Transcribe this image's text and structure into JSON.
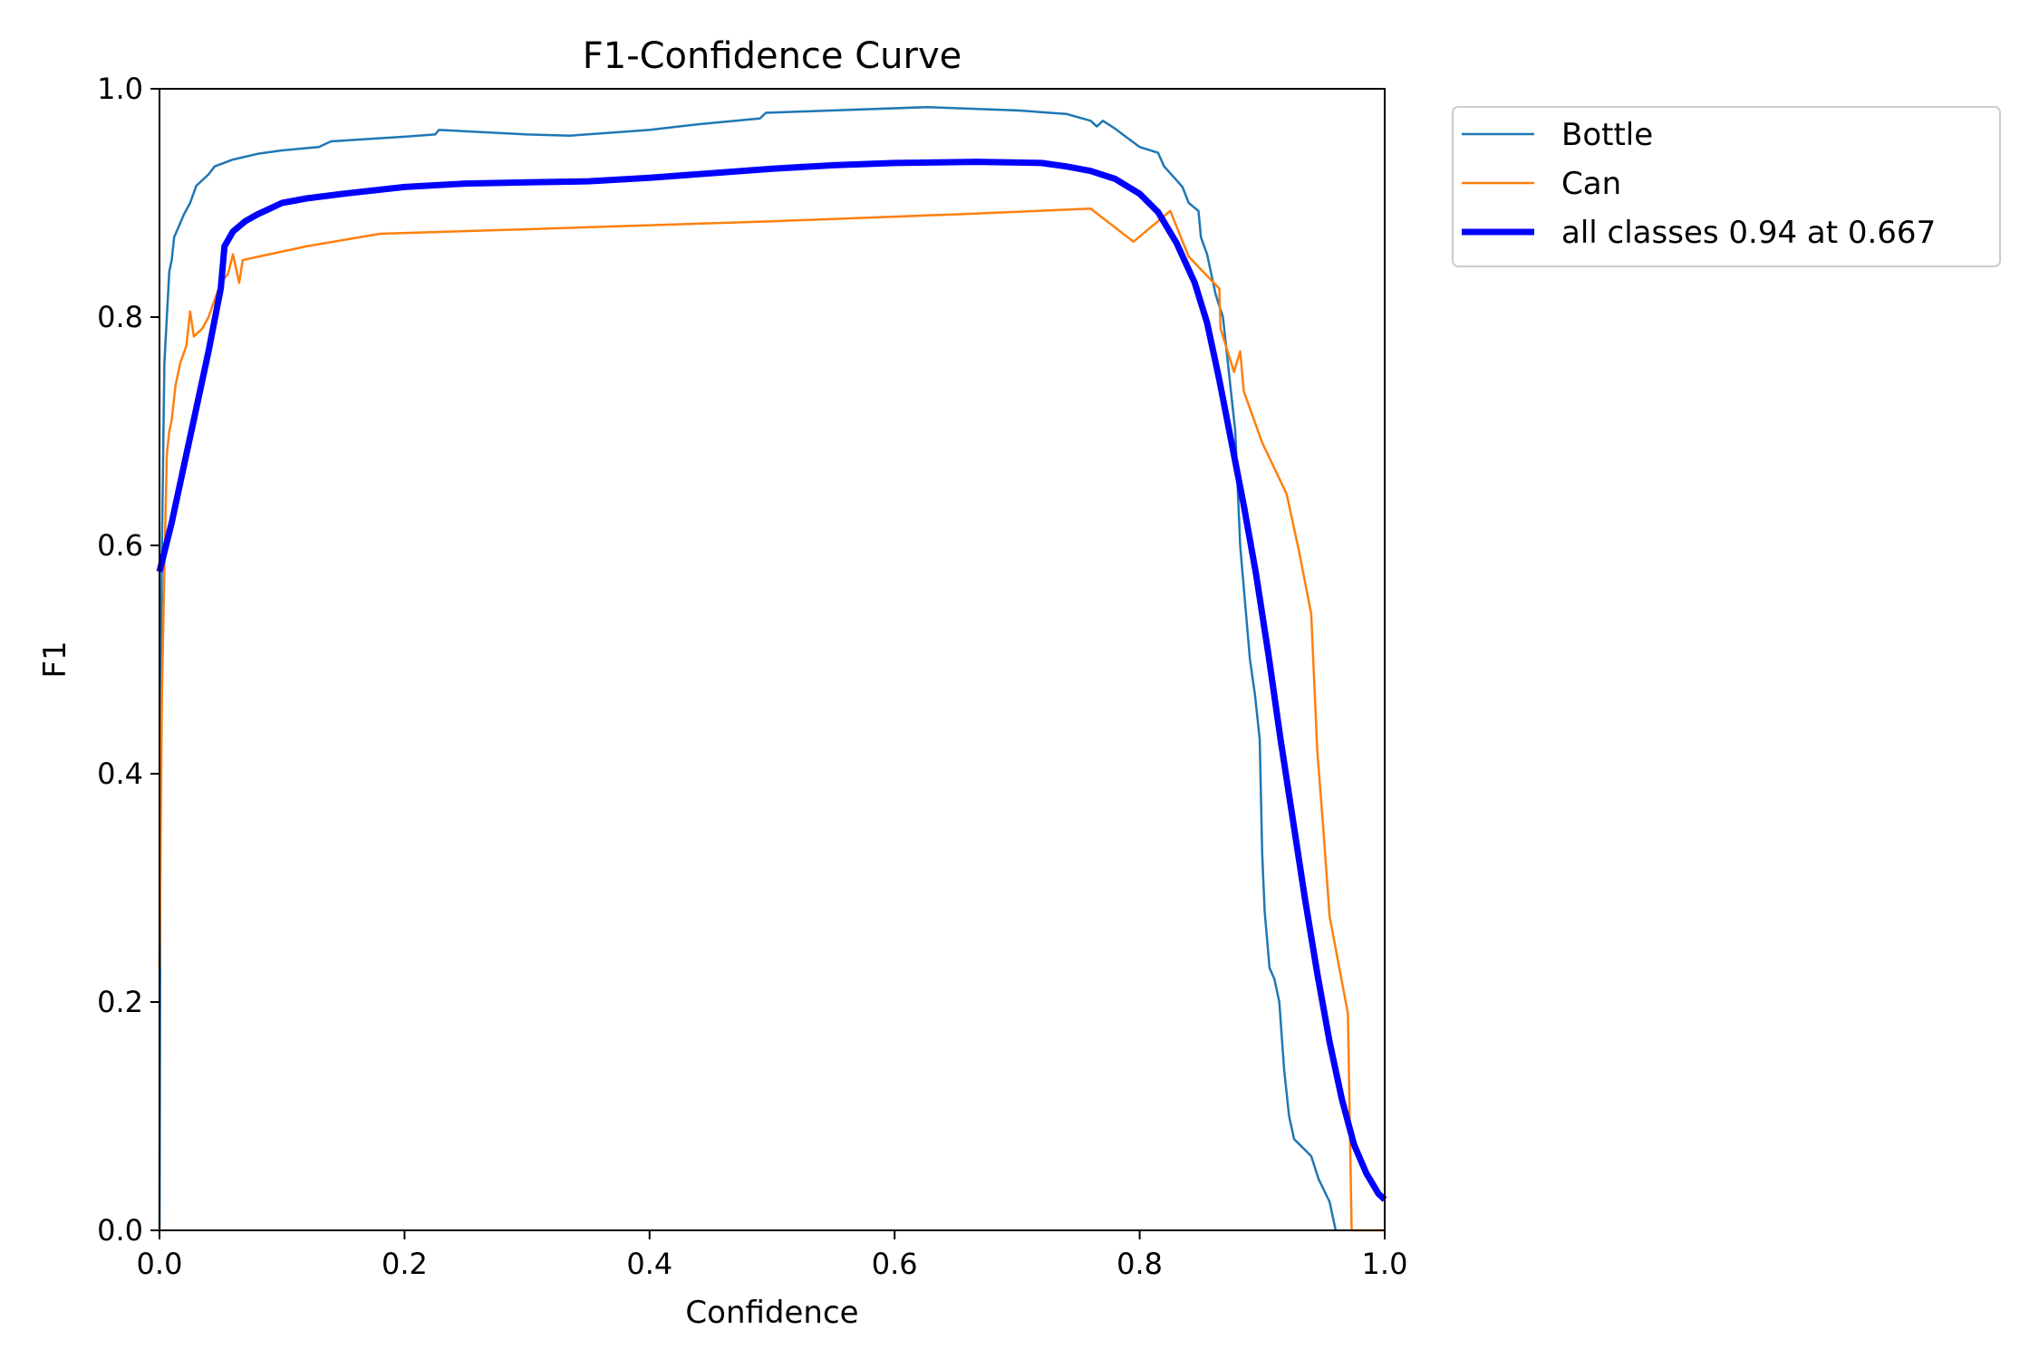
{
  "chart_data": {
    "type": "line",
    "title": "F1-Confidence Curve",
    "xlabel": "Confidence",
    "ylabel": "F1",
    "xlim": [
      0.0,
      1.0
    ],
    "ylim": [
      0.0,
      1.0
    ],
    "xticks": [
      "0.0",
      "0.2",
      "0.4",
      "0.6",
      "0.8",
      "1.0"
    ],
    "yticks": [
      "0.0",
      "0.2",
      "0.4",
      "0.6",
      "0.8",
      "1.0"
    ],
    "grid": false,
    "legend_position": "outside-top-right",
    "series": [
      {
        "name": "Bottle",
        "color": "#1f77b4",
        "width": "thin",
        "points": [
          [
            0.0,
            0.0
          ],
          [
            0.001,
            0.47
          ],
          [
            0.002,
            0.6
          ],
          [
            0.004,
            0.76
          ],
          [
            0.006,
            0.8
          ],
          [
            0.008,
            0.84
          ],
          [
            0.01,
            0.85
          ],
          [
            0.012,
            0.87
          ],
          [
            0.016,
            0.88
          ],
          [
            0.02,
            0.89
          ],
          [
            0.025,
            0.9
          ],
          [
            0.03,
            0.915
          ],
          [
            0.04,
            0.925
          ],
          [
            0.045,
            0.932
          ],
          [
            0.06,
            0.938
          ],
          [
            0.08,
            0.943
          ],
          [
            0.1,
            0.946
          ],
          [
            0.13,
            0.949
          ],
          [
            0.14,
            0.954
          ],
          [
            0.2,
            0.958
          ],
          [
            0.225,
            0.96
          ],
          [
            0.228,
            0.964
          ],
          [
            0.3,
            0.96
          ],
          [
            0.335,
            0.959
          ],
          [
            0.4,
            0.964
          ],
          [
            0.44,
            0.969
          ],
          [
            0.49,
            0.974
          ],
          [
            0.495,
            0.979
          ],
          [
            0.55,
            0.981
          ],
          [
            0.627,
            0.984
          ],
          [
            0.7,
            0.981
          ],
          [
            0.74,
            0.978
          ],
          [
            0.76,
            0.972
          ],
          [
            0.765,
            0.967
          ],
          [
            0.77,
            0.972
          ],
          [
            0.78,
            0.965
          ],
          [
            0.79,
            0.957
          ],
          [
            0.8,
            0.949
          ],
          [
            0.815,
            0.944
          ],
          [
            0.82,
            0.932
          ],
          [
            0.83,
            0.92
          ],
          [
            0.835,
            0.914
          ],
          [
            0.84,
            0.9
          ],
          [
            0.848,
            0.893
          ],
          [
            0.85,
            0.87
          ],
          [
            0.855,
            0.855
          ],
          [
            0.862,
            0.82
          ],
          [
            0.868,
            0.8
          ],
          [
            0.873,
            0.75
          ],
          [
            0.878,
            0.7
          ],
          [
            0.882,
            0.6
          ],
          [
            0.886,
            0.55
          ],
          [
            0.89,
            0.5
          ],
          [
            0.894,
            0.47
          ],
          [
            0.898,
            0.43
          ],
          [
            0.9,
            0.33
          ],
          [
            0.902,
            0.28
          ],
          [
            0.906,
            0.23
          ],
          [
            0.91,
            0.22
          ],
          [
            0.914,
            0.2
          ],
          [
            0.918,
            0.14
          ],
          [
            0.922,
            0.1
          ],
          [
            0.926,
            0.08
          ],
          [
            0.94,
            0.065
          ],
          [
            0.946,
            0.045
          ],
          [
            0.955,
            0.025
          ],
          [
            0.96,
            0.0
          ]
        ]
      },
      {
        "name": "Can",
        "color": "#ff7f0e",
        "width": "thin",
        "points": [
          [
            0.0,
            0.23
          ],
          [
            0.002,
            0.47
          ],
          [
            0.004,
            0.58
          ],
          [
            0.006,
            0.68
          ],
          [
            0.008,
            0.7
          ],
          [
            0.01,
            0.71
          ],
          [
            0.013,
            0.74
          ],
          [
            0.017,
            0.76
          ],
          [
            0.022,
            0.775
          ],
          [
            0.025,
            0.805
          ],
          [
            0.028,
            0.783
          ],
          [
            0.035,
            0.79
          ],
          [
            0.04,
            0.8
          ],
          [
            0.05,
            0.83
          ],
          [
            0.056,
            0.838
          ],
          [
            0.06,
            0.855
          ],
          [
            0.065,
            0.83
          ],
          [
            0.068,
            0.85
          ],
          [
            0.12,
            0.862
          ],
          [
            0.18,
            0.873
          ],
          [
            0.3,
            0.877
          ],
          [
            0.5,
            0.884
          ],
          [
            0.65,
            0.89
          ],
          [
            0.76,
            0.895
          ],
          [
            0.795,
            0.866
          ],
          [
            0.825,
            0.893
          ],
          [
            0.84,
            0.853
          ],
          [
            0.865,
            0.825
          ],
          [
            0.866,
            0.79
          ],
          [
            0.877,
            0.752
          ],
          [
            0.882,
            0.77
          ],
          [
            0.885,
            0.735
          ],
          [
            0.9,
            0.69
          ],
          [
            0.92,
            0.645
          ],
          [
            0.93,
            0.595
          ],
          [
            0.94,
            0.54
          ],
          [
            0.945,
            0.42
          ],
          [
            0.95,
            0.35
          ],
          [
            0.955,
            0.275
          ],
          [
            0.97,
            0.19
          ],
          [
            0.973,
            0.0
          ],
          [
            1.0,
            0.0
          ]
        ]
      },
      {
        "name": "all classes 0.94 at 0.667",
        "color": "#0000ff",
        "width": "thick",
        "points": [
          [
            0.0,
            0.577
          ],
          [
            0.01,
            0.62
          ],
          [
            0.02,
            0.67
          ],
          [
            0.03,
            0.72
          ],
          [
            0.04,
            0.77
          ],
          [
            0.05,
            0.825
          ],
          [
            0.053,
            0.862
          ],
          [
            0.06,
            0.875
          ],
          [
            0.07,
            0.884
          ],
          [
            0.08,
            0.89
          ],
          [
            0.09,
            0.895
          ],
          [
            0.1,
            0.9
          ],
          [
            0.12,
            0.904
          ],
          [
            0.15,
            0.908
          ],
          [
            0.2,
            0.914
          ],
          [
            0.25,
            0.917
          ],
          [
            0.3,
            0.918
          ],
          [
            0.35,
            0.919
          ],
          [
            0.4,
            0.922
          ],
          [
            0.45,
            0.926
          ],
          [
            0.5,
            0.93
          ],
          [
            0.55,
            0.933
          ],
          [
            0.6,
            0.935
          ],
          [
            0.667,
            0.936
          ],
          [
            0.72,
            0.935
          ],
          [
            0.74,
            0.932
          ],
          [
            0.76,
            0.928
          ],
          [
            0.78,
            0.921
          ],
          [
            0.8,
            0.908
          ],
          [
            0.815,
            0.892
          ],
          [
            0.83,
            0.865
          ],
          [
            0.845,
            0.83
          ],
          [
            0.855,
            0.795
          ],
          [
            0.865,
            0.745
          ],
          [
            0.875,
            0.69
          ],
          [
            0.885,
            0.635
          ],
          [
            0.895,
            0.575
          ],
          [
            0.905,
            0.505
          ],
          [
            0.915,
            0.43
          ],
          [
            0.925,
            0.36
          ],
          [
            0.935,
            0.29
          ],
          [
            0.945,
            0.225
          ],
          [
            0.955,
            0.165
          ],
          [
            0.965,
            0.115
          ],
          [
            0.975,
            0.075
          ],
          [
            0.985,
            0.05
          ],
          [
            0.995,
            0.032
          ],
          [
            1.0,
            0.027
          ]
        ]
      }
    ]
  }
}
